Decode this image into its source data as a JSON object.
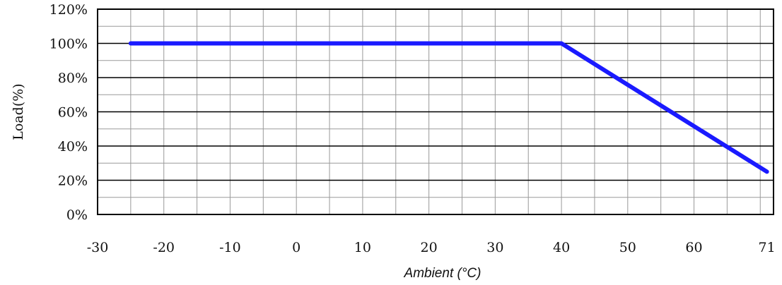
{
  "chart_data": {
    "type": "line",
    "title": "",
    "xlabel": "Ambient (°C)",
    "ylabel": "Load(%)",
    "xlim": [
      -30,
      72
    ],
    "ylim": [
      0,
      120
    ],
    "x_ticks": [
      -30,
      -20,
      -10,
      0,
      10,
      20,
      30,
      40,
      50,
      60,
      71
    ],
    "x_tick_labels": [
      "-30",
      "-20",
      "-10",
      "0",
      "10",
      "20",
      "30",
      "40",
      "50",
      "60",
      "71"
    ],
    "y_ticks": [
      0,
      20,
      40,
      60,
      80,
      100,
      120
    ],
    "y_tick_labels": [
      "0%",
      "20%",
      "40%",
      "60%",
      "80%",
      "100%",
      "120%"
    ],
    "grid": true,
    "series": [
      {
        "x": [
          -25,
          40,
          71
        ],
        "y": [
          100,
          100,
          25
        ],
        "color": "#1a1aff"
      }
    ]
  }
}
